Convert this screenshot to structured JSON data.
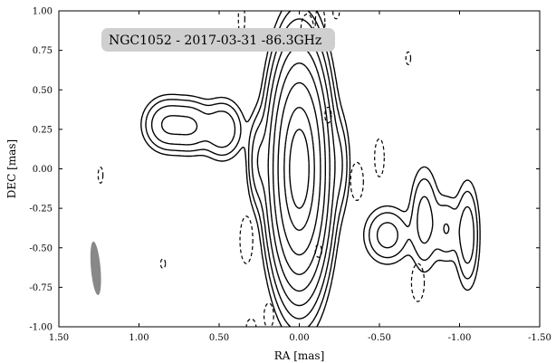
{
  "chart_data": {
    "type": "contour",
    "title": "NGC1052 - 2017-03-31 -86.3GHz",
    "xlabel": "RA [mas]",
    "ylabel": "DEC [mas]",
    "xlim": [
      1.5,
      -1.5
    ],
    "ylim": [
      -1.0,
      1.0
    ],
    "x_ticks": [
      "1.50",
      "1.00",
      "0.50",
      "0.00",
      "-0.50",
      "-1.00",
      "-1.50"
    ],
    "y_ticks": [
      "1.00",
      "0.75",
      "0.50",
      "0.25",
      "0.00",
      "-0.25",
      "-0.50",
      "-0.75",
      "-1.00"
    ],
    "grid": false,
    "beam": {
      "x": 1.27,
      "y": -0.63,
      "major": 0.34,
      "minor": 0.06,
      "pa_deg": -5,
      "color": "#888888"
    },
    "components": [
      {
        "x": 0.0,
        "y": 0.0,
        "sx": 0.08,
        "sy": 0.33,
        "amp": 1.0
      },
      {
        "x": 0.82,
        "y": 0.28,
        "sx": 0.08,
        "sy": 0.09,
        "amp": 0.035
      },
      {
        "x": 0.67,
        "y": 0.27,
        "sx": 0.07,
        "sy": 0.09,
        "amp": 0.03
      },
      {
        "x": 0.48,
        "y": 0.25,
        "sx": 0.07,
        "sy": 0.1,
        "amp": 0.03
      },
      {
        "x": 0.25,
        "y": 0.05,
        "sx": 0.04,
        "sy": 0.16,
        "amp": 0.028
      },
      {
        "x": -0.25,
        "y": 0.03,
        "sx": 0.04,
        "sy": 0.18,
        "amp": 0.014
      },
      {
        "x": -0.55,
        "y": -0.42,
        "sx": 0.08,
        "sy": 0.1,
        "amp": 0.022
      },
      {
        "x": -0.78,
        "y": -0.32,
        "sx": 0.05,
        "sy": 0.18,
        "amp": 0.022
      },
      {
        "x": -0.92,
        "y": -0.38,
        "sx": 0.05,
        "sy": 0.12,
        "amp": 0.016
      },
      {
        "x": -1.05,
        "y": -0.42,
        "sx": 0.04,
        "sy": 0.18,
        "amp": 0.026
      }
    ],
    "levels": [
      0.004,
      0.008,
      0.016,
      0.032,
      0.064,
      0.128,
      0.256,
      0.5,
      0.75
    ],
    "negative_contours": [
      {
        "x": 0.36,
        "y": 0.95,
        "rx": 0.02,
        "ry": 0.11
      },
      {
        "x": -0.05,
        "y": 0.88,
        "rx": 0.04,
        "ry": 0.1
      },
      {
        "x": -0.13,
        "y": 0.92,
        "rx": 0.03,
        "ry": 0.12
      },
      {
        "x": -0.23,
        "y": 0.99,
        "rx": 0.02,
        "ry": 0.04
      },
      {
        "x": -0.68,
        "y": 0.7,
        "rx": 0.015,
        "ry": 0.04
      },
      {
        "x": 1.24,
        "y": -0.04,
        "rx": 0.015,
        "ry": 0.05
      },
      {
        "x": -0.18,
        "y": 0.34,
        "rx": 0.02,
        "ry": 0.05
      },
      {
        "x": -0.36,
        "y": -0.08,
        "rx": 0.04,
        "ry": 0.12
      },
      {
        "x": -0.5,
        "y": 0.07,
        "rx": 0.03,
        "ry": 0.12
      },
      {
        "x": 0.33,
        "y": -0.45,
        "rx": 0.04,
        "ry": 0.15
      },
      {
        "x": -0.12,
        "y": -0.52,
        "rx": 0.02,
        "ry": 0.04
      },
      {
        "x": 0.85,
        "y": -0.6,
        "rx": 0.015,
        "ry": 0.03
      },
      {
        "x": -0.74,
        "y": -0.72,
        "rx": 0.04,
        "ry": 0.12
      },
      {
        "x": 0.19,
        "y": -0.93,
        "rx": 0.03,
        "ry": 0.08
      },
      {
        "x": 0.3,
        "y": -1.0,
        "rx": 0.03,
        "ry": 0.05
      }
    ]
  }
}
